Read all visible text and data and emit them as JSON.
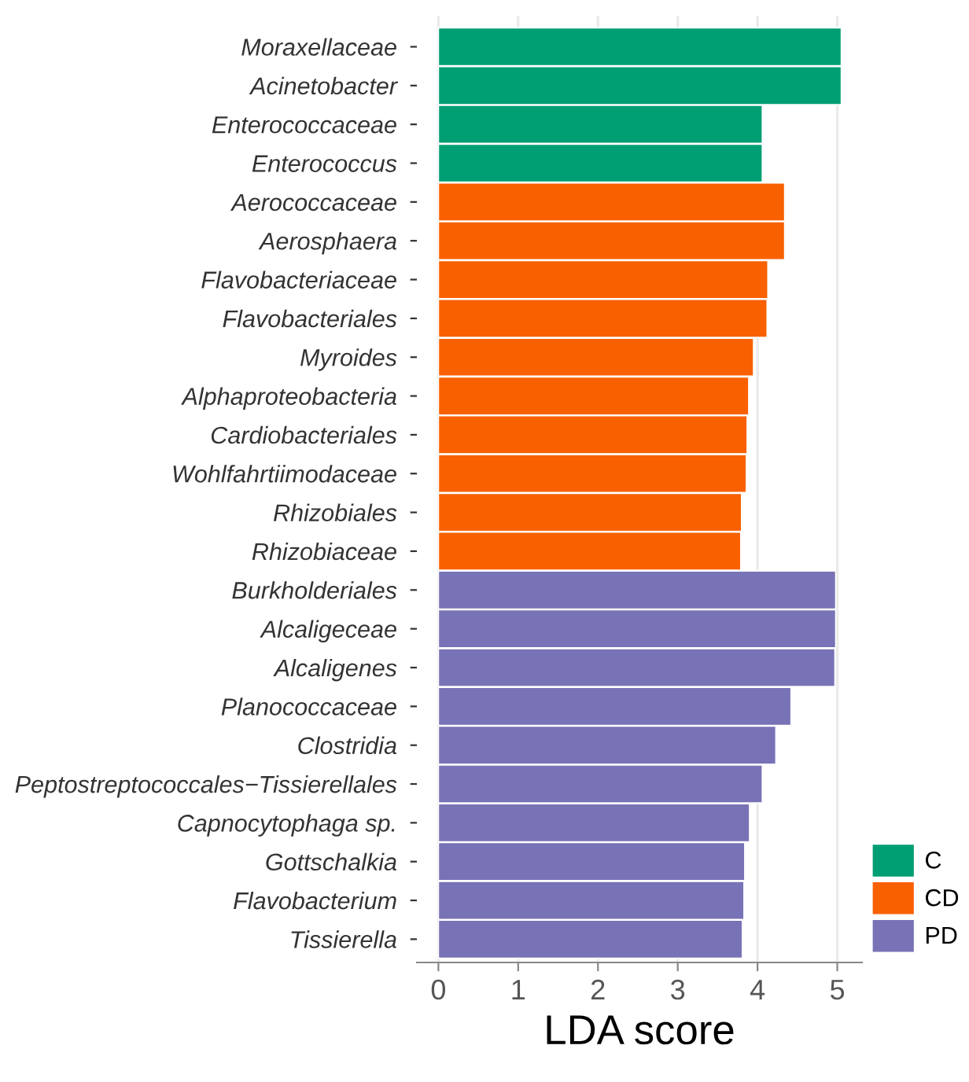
{
  "chart_data": {
    "type": "bar",
    "orientation": "horizontal",
    "xlabel": "LDA score",
    "categories": [
      "Moraxellaceae",
      "Acinetobacter",
      "Enterococcaceae",
      "Enterococcus",
      "Aerococcaceae",
      "Aerosphaera",
      "Flavobacteriaceae",
      "Flavobacteriales",
      "Myroides",
      "Alphaproteobacteria",
      "Cardiobacteriales",
      "Wohlfahrtiimodaceae",
      "Rhizobiales",
      "Rhizobiaceae",
      "Burkholderiales",
      "Alcaligeceae",
      "Alcaligenes",
      "Planococcaceae",
      "Clostridia",
      "Peptostreptococcales−Tissierellales",
      "Capnocytophaga sp.",
      "Gottschalkia",
      "Flavobacterium",
      "Tissierella"
    ],
    "series": [
      {
        "name": "C",
        "color": "#009e73",
        "values": [
          5.05,
          5.05,
          4.06,
          4.06,
          null,
          null,
          null,
          null,
          null,
          null,
          null,
          null,
          null,
          null,
          null,
          null,
          null,
          null,
          null,
          null,
          null,
          null,
          null,
          null
        ]
      },
      {
        "name": "CD",
        "color": "#f96000",
        "values": [
          null,
          null,
          null,
          null,
          4.34,
          4.34,
          4.13,
          4.12,
          3.95,
          3.89,
          3.87,
          3.86,
          3.8,
          3.79,
          null,
          null,
          null,
          null,
          null,
          null,
          null,
          null,
          null,
          null
        ]
      },
      {
        "name": "PD",
        "color": "#7872b6",
        "values": [
          null,
          null,
          null,
          null,
          null,
          null,
          null,
          null,
          null,
          null,
          null,
          null,
          null,
          null,
          4.98,
          4.98,
          4.97,
          4.42,
          4.23,
          4.06,
          3.9,
          3.84,
          3.83,
          3.81
        ]
      }
    ],
    "xlim": [
      -0.27,
      5.31
    ],
    "xticks": [
      0,
      1,
      2,
      3,
      4,
      5
    ],
    "grid": "x",
    "legend": "bottom right"
  }
}
